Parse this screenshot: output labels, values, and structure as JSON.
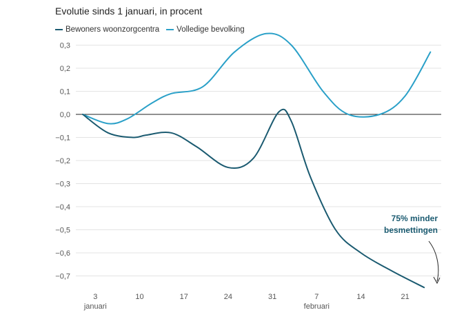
{
  "chart_data": {
    "type": "line",
    "title": "Evolutie sinds 1 januari, in procent",
    "x_tick_labels": [
      "3",
      "10",
      "17",
      "24",
      "31",
      "7",
      "14",
      "21"
    ],
    "x_month_labels": [
      "januari",
      "februari"
    ],
    "y_tick_labels": [
      "0,3",
      "0,2",
      "0,1",
      "0,0",
      "-0,1",
      "-0,2",
      "-0,3",
      "-0,4",
      "-0,5",
      "-0,6",
      "-0,7"
    ],
    "ylim": [
      -0.75,
      0.33
    ],
    "xlim": [
      1,
      56
    ],
    "grid": true,
    "legend_position": "top-left",
    "series": [
      {
        "name": "Bewoners woonzorgcentra",
        "color": "#1a5a70",
        "x": [
          1,
          5,
          9,
          11,
          15,
          19,
          24,
          28,
          32,
          34,
          37,
          41,
          45,
          50,
          55
        ],
        "values": [
          0.0,
          -0.08,
          -0.1,
          -0.09,
          -0.08,
          -0.14,
          -0.23,
          -0.19,
          0.01,
          -0.03,
          -0.27,
          -0.5,
          -0.6,
          -0.68,
          -0.75
        ]
      },
      {
        "name": "Volledige bevolking",
        "color": "#2aa0c8",
        "x": [
          1,
          5,
          8,
          12,
          15,
          20,
          25,
          30,
          34,
          39,
          43,
          48,
          52,
          56
        ],
        "values": [
          0.0,
          -0.04,
          -0.02,
          0.05,
          0.09,
          0.12,
          0.27,
          0.35,
          0.3,
          0.1,
          0.0,
          0.0,
          0.08,
          0.27
        ]
      }
    ],
    "annotation": {
      "text_line1": "75% minder",
      "text_line2": "besmettingen"
    }
  }
}
